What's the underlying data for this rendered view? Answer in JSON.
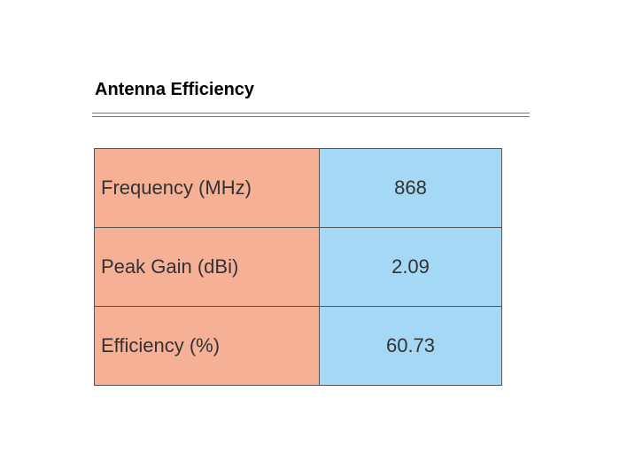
{
  "header": {
    "title": "Antenna Efficiency"
  },
  "table": {
    "rows": [
      [
        "Frequency (MHz)",
        "868"
      ],
      [
        "Peak Gain (dBi)",
        "2.09"
      ],
      [
        "Efficiency (%)",
        "60.73"
      ]
    ]
  }
}
